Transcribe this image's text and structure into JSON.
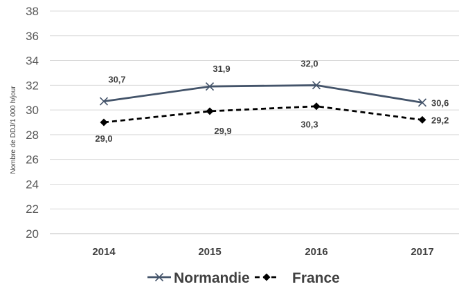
{
  "chart_data": {
    "type": "line",
    "title": "",
    "xlabel": "",
    "ylabel": "Nombre de DDJ/1 000 h/jour",
    "categories": [
      "2014",
      "2015",
      "2016",
      "2017"
    ],
    "ylim": [
      20,
      38
    ],
    "yticks": [
      "20",
      "22",
      "24",
      "26",
      "28",
      "30",
      "32",
      "34",
      "36",
      "38"
    ],
    "grid": true,
    "legend_position": "bottom",
    "series": [
      {
        "name": "Normandie",
        "values": [
          30.7,
          31.9,
          32.0,
          30.6
        ],
        "labels": [
          "30,7",
          "31,9",
          "32,0",
          "30,6"
        ],
        "color": "#44546a",
        "line_style": "solid",
        "marker": "x"
      },
      {
        "name": "France",
        "values": [
          29.0,
          29.9,
          30.3,
          29.2
        ],
        "labels": [
          "29,0",
          "29,9",
          "30,3",
          "29,2"
        ],
        "color": "#000000",
        "line_style": "dashed",
        "marker": "diamond"
      }
    ]
  }
}
